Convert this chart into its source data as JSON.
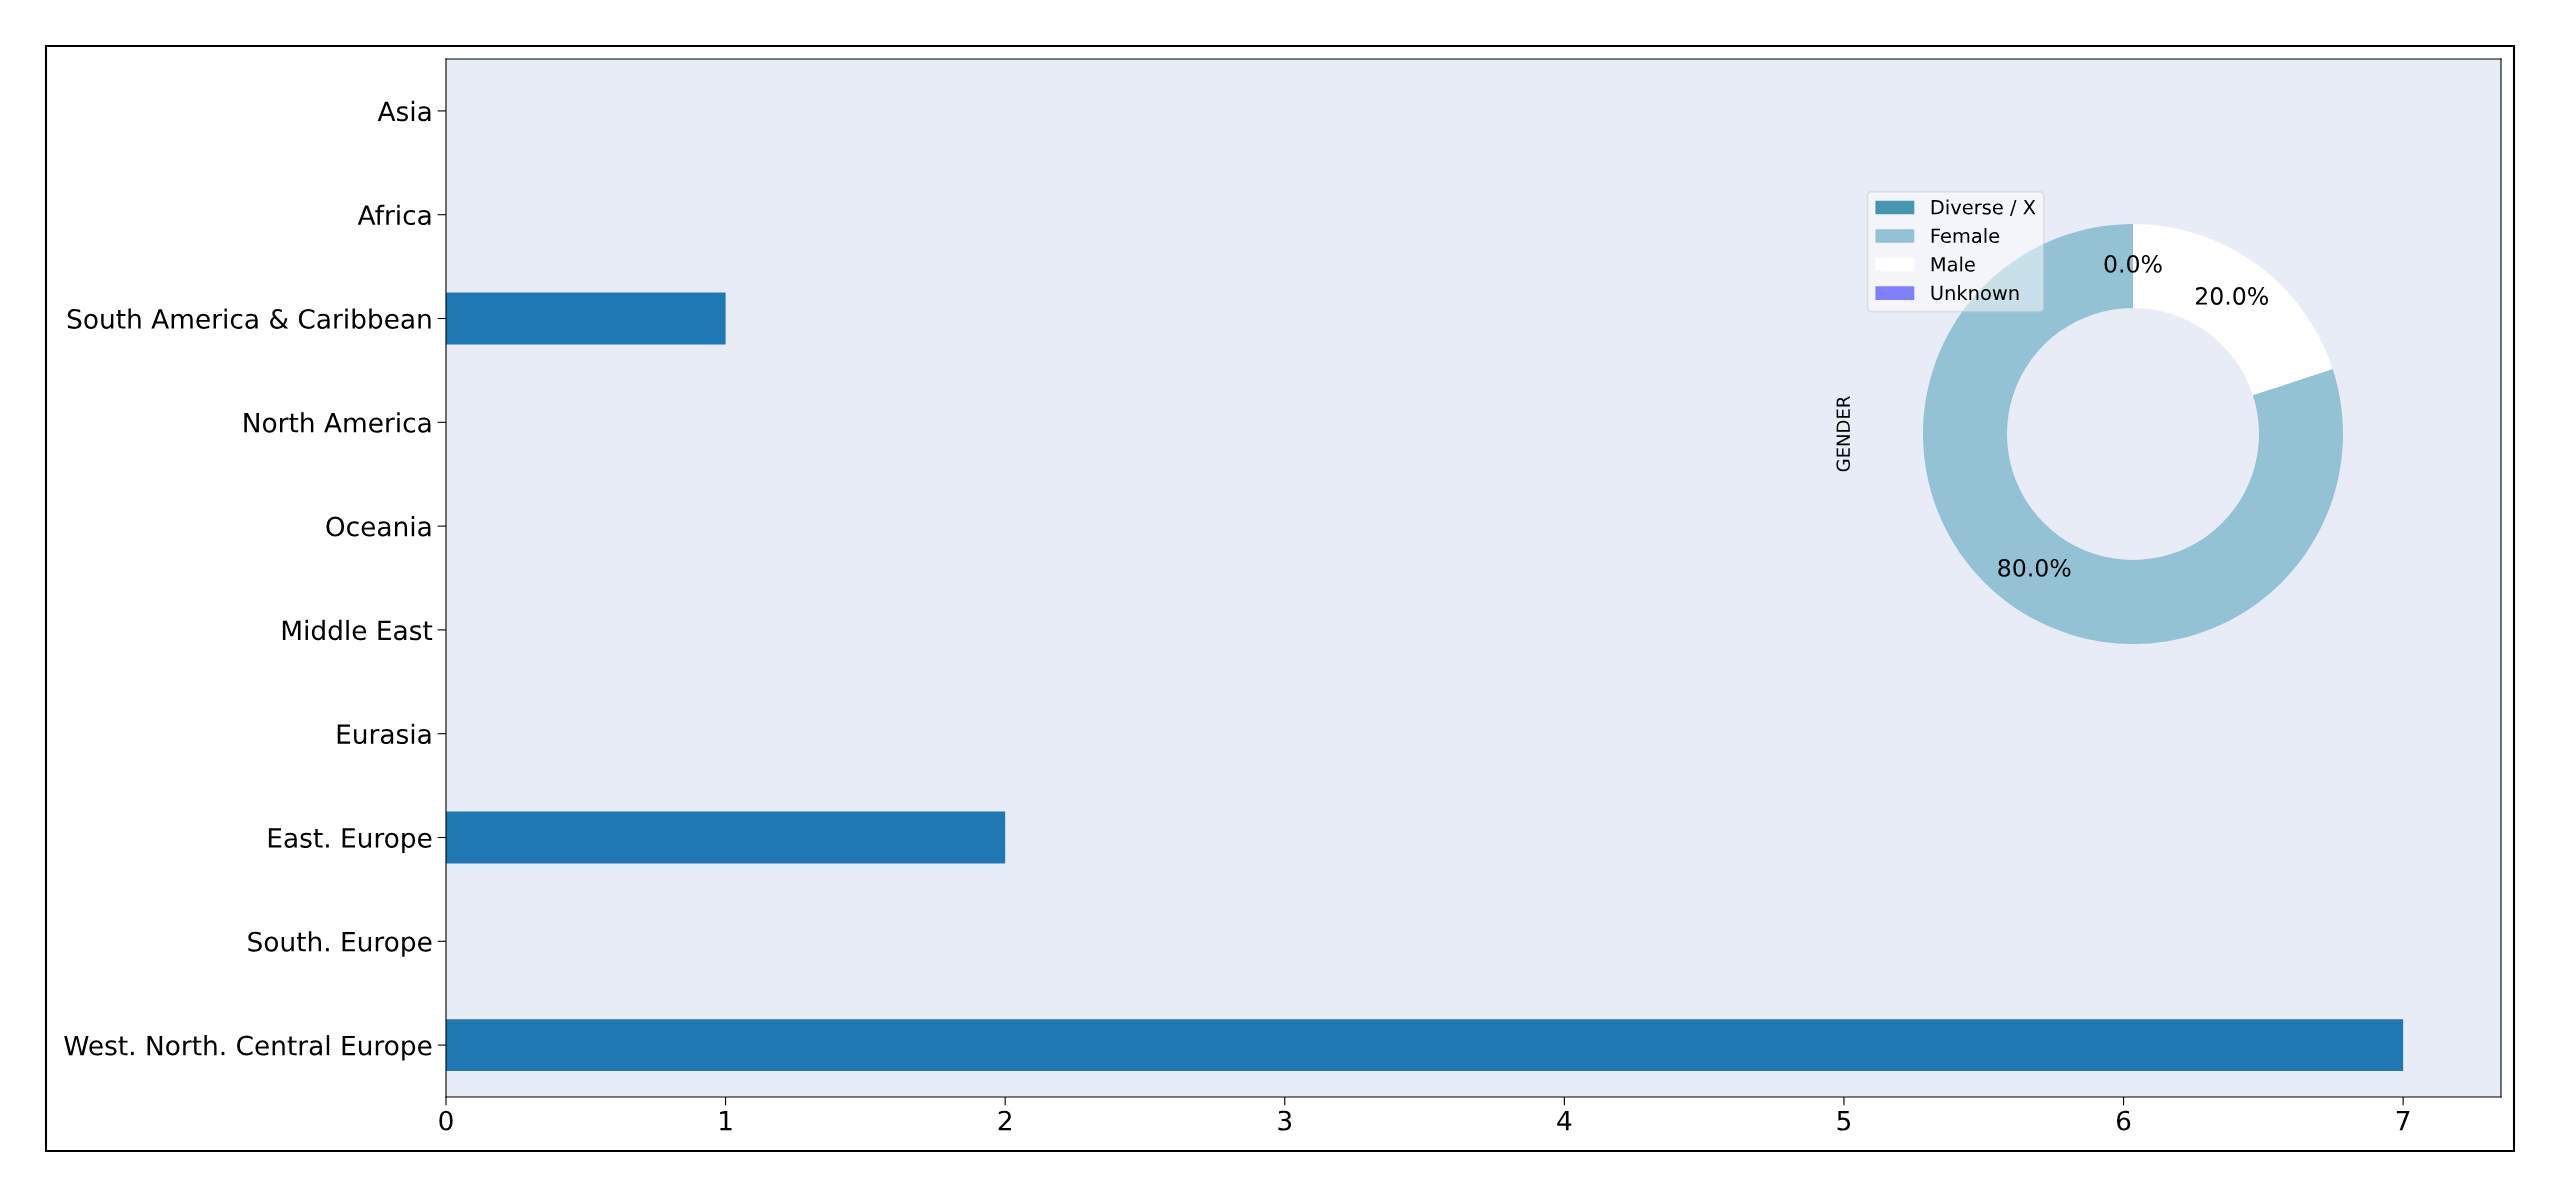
{
  "chart_data": [
    {
      "type": "bar",
      "orientation": "horizontal",
      "categories": [
        "Asia",
        "Africa",
        "South America & Caribbean",
        "North America",
        "Oceania",
        "Middle East",
        "Eurasia",
        "East. Europe",
        "South. Europe",
        "West. North. Central Europe"
      ],
      "values": [
        0,
        0,
        1,
        0,
        0,
        0,
        0,
        2,
        0,
        7
      ],
      "color": "#1f77b4",
      "xlim": [
        0,
        7.35
      ],
      "xticks": [
        0,
        1,
        2,
        3,
        4,
        5,
        6,
        7
      ],
      "grid": false,
      "legend": false
    },
    {
      "type": "donut",
      "ylabel": "GENDER",
      "categories": [
        "Diverse / X",
        "Female",
        "Male",
        "Unknown"
      ],
      "values": [
        0,
        80,
        20,
        0
      ],
      "colors": [
        "#4596ae",
        "#92c2d4",
        "#ffffff",
        "#8080ff"
      ],
      "value_labels": [
        "0.0%",
        "80.0%",
        "20.0%",
        null
      ],
      "legend": "top left"
    }
  ]
}
